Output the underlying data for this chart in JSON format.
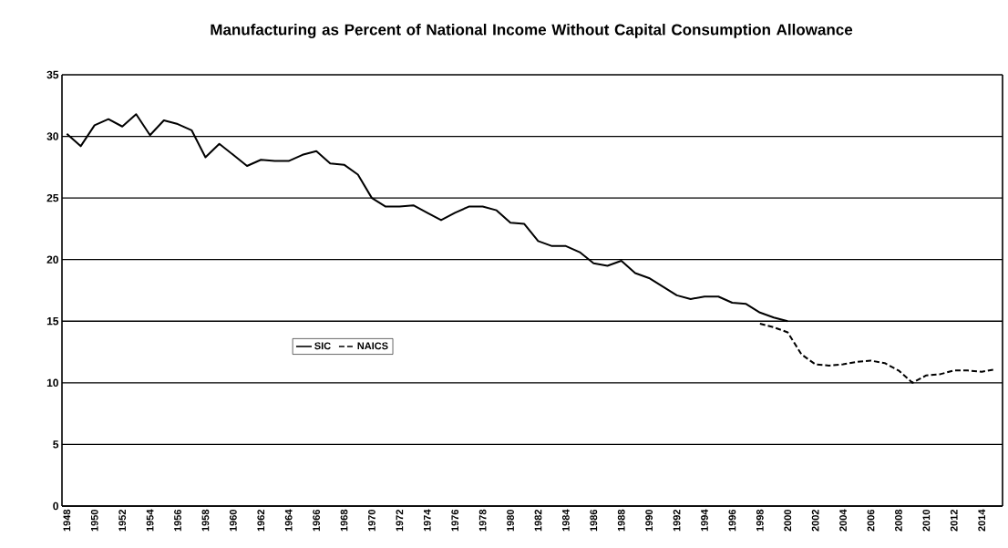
{
  "chart_data": {
    "type": "line",
    "title": "Manufacturing as Percent of National Income Without Capital Consumption Allowance",
    "categories": [
      "1948",
      null,
      "1950",
      null,
      "1952",
      null,
      "1954",
      null,
      "1956",
      null,
      "1958",
      null,
      "1960",
      null,
      "1962",
      null,
      "1964",
      null,
      "1966",
      null,
      "1968",
      null,
      "1970",
      null,
      "1972",
      null,
      "1974",
      null,
      "1976",
      null,
      "1978",
      null,
      "1980",
      null,
      "1982",
      null,
      "1984",
      null,
      "1986",
      null,
      "1988",
      null,
      "1990",
      null,
      "1992",
      null,
      "1994",
      null,
      "1996",
      null,
      "1998",
      null,
      "2000",
      null,
      "2002",
      null,
      "2004",
      null,
      "2006",
      null,
      "2008",
      null,
      "2010",
      null,
      "2012",
      null,
      "2014",
      null
    ],
    "series": [
      {
        "name": "SIC",
        "color": "#000000",
        "line_style": "solid",
        "values": [
          30.2,
          29.2,
          30.9,
          31.4,
          30.8,
          31.8,
          30.1,
          31.3,
          31.0,
          30.5,
          28.3,
          29.4,
          28.5,
          27.6,
          28.1,
          28.0,
          28.0,
          28.5,
          28.8,
          27.8,
          27.7,
          26.9,
          25.0,
          24.3,
          24.3,
          24.4,
          23.8,
          23.2,
          23.8,
          24.3,
          24.3,
          24.0,
          23.0,
          22.9,
          21.5,
          21.1,
          21.1,
          20.6,
          19.7,
          19.5,
          19.9,
          18.9,
          18.5,
          17.8,
          17.1,
          16.8,
          17.0,
          17.0,
          16.5,
          16.4,
          15.7,
          15.3,
          15.0,
          null,
          null,
          null,
          null,
          null,
          null,
          null,
          null,
          null,
          null,
          null,
          null,
          null,
          null,
          null
        ]
      },
      {
        "name": "NAICS",
        "color": "#000000",
        "line_style": "dashed",
        "values": [
          null,
          null,
          null,
          null,
          null,
          null,
          null,
          null,
          null,
          null,
          null,
          null,
          null,
          null,
          null,
          null,
          null,
          null,
          null,
          null,
          null,
          null,
          null,
          null,
          null,
          null,
          null,
          null,
          null,
          null,
          null,
          null,
          null,
          null,
          null,
          null,
          null,
          null,
          null,
          null,
          null,
          null,
          null,
          null,
          null,
          null,
          null,
          null,
          null,
          null,
          14.8,
          14.5,
          14.1,
          12.3,
          11.5,
          11.4,
          11.5,
          11.7,
          11.8,
          11.6,
          11.0,
          10.0,
          10.6,
          10.7,
          11.0,
          11.0,
          10.9,
          11.1
        ]
      }
    ],
    "ylim": [
      0,
      35
    ],
    "yticks": [
      0,
      5,
      10,
      15,
      20,
      25,
      30,
      35
    ],
    "grid": "y",
    "legend": "left"
  }
}
